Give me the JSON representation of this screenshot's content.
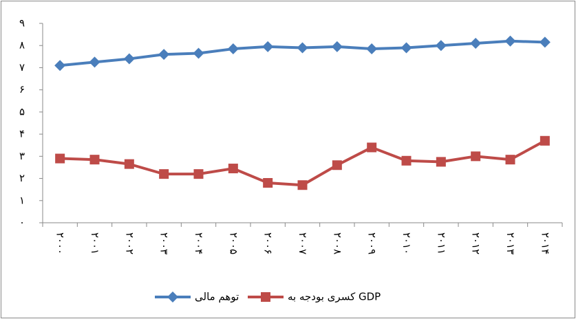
{
  "chart_data": {
    "type": "line",
    "categories": [
      "۲۰۰۰",
      "۲۰۰۱",
      "۲۰۰۲",
      "۲۰۰۳",
      "۲۰۰۴",
      "۲۰۰۵",
      "۲۰۰۶",
      "۲۰۰۷",
      "۲۰۰۸",
      "۲۰۰۹",
      "۲۰۱۰",
      "۲۰۱۱",
      "۲۰۱۲",
      "۲۰۱۳",
      "۲۰۱۴"
    ],
    "series": [
      {
        "name": "توهم مالی",
        "color": "#4a7ebb",
        "marker": "diamond",
        "values": [
          7.1,
          7.25,
          7.4,
          7.6,
          7.65,
          7.85,
          7.95,
          7.9,
          7.95,
          7.85,
          7.9,
          8.0,
          8.1,
          8.2,
          8.15
        ]
      },
      {
        "name": "کسری بودجه به GDP",
        "color": "#be4b48",
        "marker": "square",
        "values": [
          2.9,
          2.85,
          2.65,
          2.2,
          2.2,
          2.45,
          1.8,
          1.7,
          2.6,
          3.4,
          2.8,
          2.75,
          3.0,
          2.85,
          3.7
        ]
      }
    ],
    "ylim": [
      0,
      9
    ],
    "yticks": [
      {
        "value": 0,
        "label": "۰"
      },
      {
        "value": 1,
        "label": "۱"
      },
      {
        "value": 2,
        "label": "۲"
      },
      {
        "value": 3,
        "label": "۳"
      },
      {
        "value": 4,
        "label": "۴"
      },
      {
        "value": 5,
        "label": "۵"
      },
      {
        "value": 6,
        "label": "۶"
      },
      {
        "value": 7,
        "label": "۷"
      },
      {
        "value": 8,
        "label": "۸"
      },
      {
        "value": 9,
        "label": "۹"
      }
    ],
    "grid": false,
    "legend": "bottom"
  }
}
